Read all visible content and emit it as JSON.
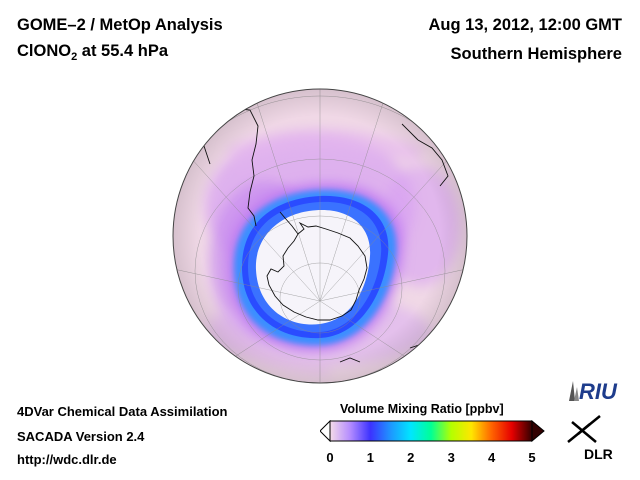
{
  "header": {
    "title": "GOME–2 / MetOp Analysis",
    "species_main": "ClONO",
    "species_sub": "2",
    "species_level": " at 55.4 hPa",
    "datetime": "Aug 13, 2012, 12:00 GMT",
    "region": "Southern Hemisphere"
  },
  "footer": {
    "system": "4DVar Chemical Data Assimilation",
    "version": "SACADA Version 2.4",
    "url": "http://wdc.dlr.de"
  },
  "colorbar": {
    "title": "Volume Mixing Ratio [ppbv]",
    "ticks": [
      "0",
      "1",
      "2",
      "3",
      "4",
      "5"
    ],
    "range": [
      0,
      5
    ],
    "stops": [
      "#f5dce8",
      "#b48cff",
      "#3c32ff",
      "#1e96ff",
      "#00e6ff",
      "#00ff96",
      "#b4ff00",
      "#ffe600",
      "#ff6400",
      "#e60000",
      "#320000"
    ]
  },
  "logos": {
    "riu": "RIU",
    "dlr": "DLR"
  },
  "map": {
    "projection": "orthographic south polar",
    "colors": {
      "background": "#f0d8e6",
      "vortex_core": "#f4f4f4",
      "ring_inner": "#2850ff",
      "ring_outer": "#3c96ff",
      "collar": "#c478f0"
    }
  }
}
